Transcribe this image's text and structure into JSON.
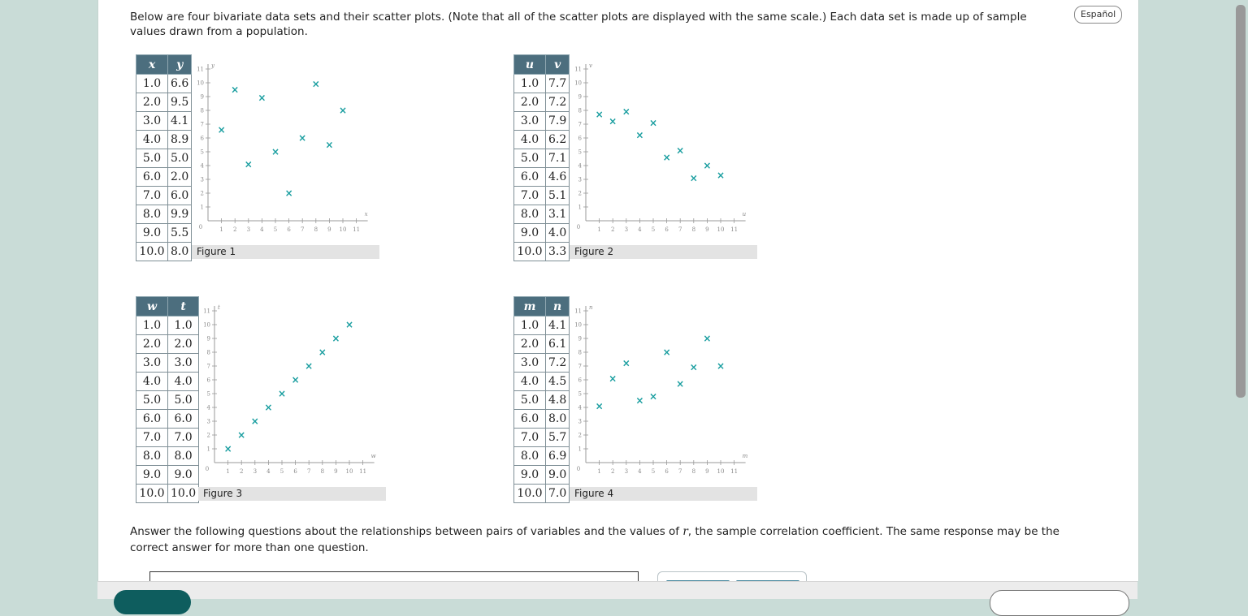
{
  "intro": "Below are four bivariate data sets and their scatter plots. (Note that all of the scatter plots are displayed with the same scale.) Each data set is made up of sample values drawn from a population.",
  "language_button": "Español",
  "figures": [
    {
      "caption": "Figure 1",
      "col1": "x",
      "col2": "y",
      "rows": [
        [
          "1.0",
          "6.6"
        ],
        [
          "2.0",
          "9.5"
        ],
        [
          "3.0",
          "4.1"
        ],
        [
          "4.0",
          "8.9"
        ],
        [
          "5.0",
          "5.0"
        ],
        [
          "6.0",
          "2.0"
        ],
        [
          "7.0",
          "6.0"
        ],
        [
          "8.0",
          "9.9"
        ],
        [
          "9.0",
          "5.5"
        ],
        [
          "10.0",
          "8.0"
        ]
      ]
    },
    {
      "caption": "Figure 2",
      "col1": "u",
      "col2": "v",
      "rows": [
        [
          "1.0",
          "7.7"
        ],
        [
          "2.0",
          "7.2"
        ],
        [
          "3.0",
          "7.9"
        ],
        [
          "4.0",
          "6.2"
        ],
        [
          "5.0",
          "7.1"
        ],
        [
          "6.0",
          "4.6"
        ],
        [
          "7.0",
          "5.1"
        ],
        [
          "8.0",
          "3.1"
        ],
        [
          "9.0",
          "4.0"
        ],
        [
          "10.0",
          "3.3"
        ]
      ]
    },
    {
      "caption": "Figure 3",
      "col1": "w",
      "col2": "t",
      "rows": [
        [
          "1.0",
          "1.0"
        ],
        [
          "2.0",
          "2.0"
        ],
        [
          "3.0",
          "3.0"
        ],
        [
          "4.0",
          "4.0"
        ],
        [
          "5.0",
          "5.0"
        ],
        [
          "6.0",
          "6.0"
        ],
        [
          "7.0",
          "7.0"
        ],
        [
          "8.0",
          "8.0"
        ],
        [
          "9.0",
          "9.0"
        ],
        [
          "10.0",
          "10.0"
        ]
      ]
    },
    {
      "caption": "Figure 4",
      "col1": "m",
      "col2": "n",
      "rows": [
        [
          "1.0",
          "4.1"
        ],
        [
          "2.0",
          "6.1"
        ],
        [
          "3.0",
          "7.2"
        ],
        [
          "4.0",
          "4.5"
        ],
        [
          "5.0",
          "4.8"
        ],
        [
          "6.0",
          "8.0"
        ],
        [
          "7.0",
          "5.7"
        ],
        [
          "8.0",
          "6.9"
        ],
        [
          "9.0",
          "9.0"
        ],
        [
          "10.0",
          "7.0"
        ]
      ]
    }
  ],
  "chart_data": [
    {
      "type": "scatter",
      "xlabel": "x",
      "ylabel": "y",
      "xlim": [
        0,
        11
      ],
      "ylim": [
        0,
        11
      ],
      "x": [
        1,
        2,
        3,
        4,
        5,
        6,
        7,
        8,
        9,
        10
      ],
      "y": [
        6.6,
        9.5,
        4.1,
        8.9,
        5.0,
        2.0,
        6.0,
        9.9,
        5.5,
        8.0
      ],
      "title": "Figure 1"
    },
    {
      "type": "scatter",
      "xlabel": "u",
      "ylabel": "v",
      "xlim": [
        0,
        11
      ],
      "ylim": [
        0,
        11
      ],
      "x": [
        1,
        2,
        3,
        4,
        5,
        6,
        7,
        8,
        9,
        10
      ],
      "y": [
        7.7,
        7.2,
        7.9,
        6.2,
        7.1,
        4.6,
        5.1,
        3.1,
        4.0,
        3.3
      ],
      "title": "Figure 2"
    },
    {
      "type": "scatter",
      "xlabel": "w",
      "ylabel": "t",
      "xlim": [
        0,
        11
      ],
      "ylim": [
        0,
        11
      ],
      "x": [
        1,
        2,
        3,
        4,
        5,
        6,
        7,
        8,
        9,
        10
      ],
      "y": [
        1,
        2,
        3,
        4,
        5,
        6,
        7,
        8,
        9,
        10
      ],
      "title": "Figure 3"
    },
    {
      "type": "scatter",
      "xlabel": "m",
      "ylabel": "n",
      "xlim": [
        0,
        11
      ],
      "ylim": [
        0,
        11
      ],
      "x": [
        1,
        2,
        3,
        4,
        5,
        6,
        7,
        8,
        9,
        10
      ],
      "y": [
        4.1,
        6.1,
        7.2,
        4.5,
        4.8,
        8.0,
        5.7,
        6.9,
        9.0,
        7.0
      ],
      "title": "Figure 4"
    }
  ],
  "point_marker": "×",
  "point_color": "#1a9ea0",
  "header_color": "#4c6e7e",
  "answer_prompt_pre": "Answer the following questions about the relationships between pairs of variables and the values of ",
  "answer_prompt_var": "r",
  "answer_prompt_post": ", the sample correlation coefficient. The same response may be the correct answer for more than one question."
}
